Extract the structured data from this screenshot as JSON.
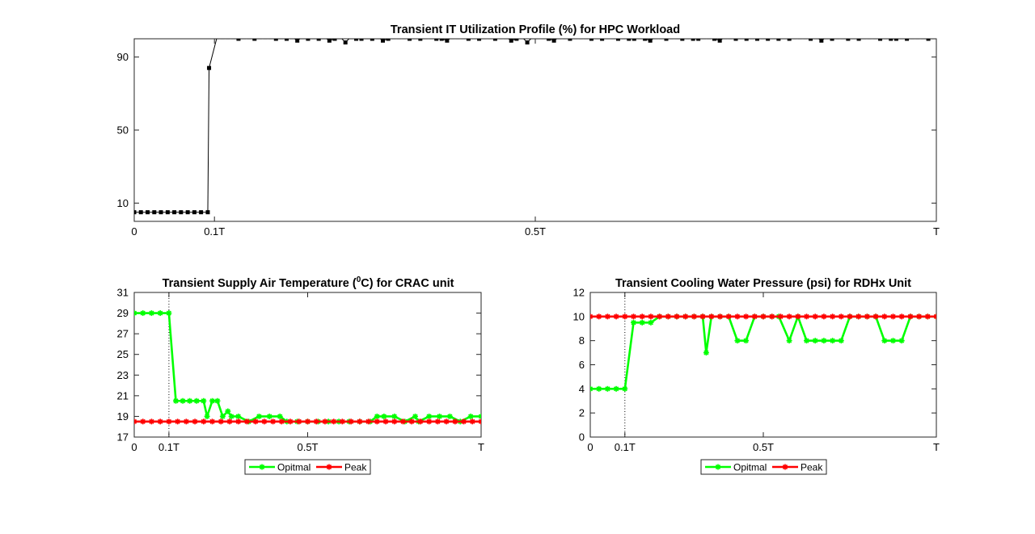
{
  "colors": {
    "optimal": "#00ff00",
    "peak": "#ff0000",
    "it": "#000000",
    "axis": "#262626"
  },
  "chart_data": [
    {
      "type": "line",
      "title": "Transient IT Utilization Profile (%) for HPC Workload",
      "xlabel": "",
      "ylabel": "",
      "xlim": [
        0,
        1
      ],
      "ylim": [
        0,
        100
      ],
      "xticks": [
        {
          "v": 0,
          "label": "0"
        },
        {
          "v": 0.1,
          "label": "0.1T"
        },
        {
          "v": 0.5,
          "label": "0.5T"
        },
        {
          "v": 1,
          "label": "T"
        }
      ],
      "yticks": [
        {
          "v": 10,
          "label": "10"
        },
        {
          "v": 50,
          "label": "50"
        },
        {
          "v": 90,
          "label": "90"
        }
      ],
      "grid": false,
      "marker": "square",
      "series": [
        {
          "color": "#000000",
          "x": [
            0,
            0.0083,
            0.0167,
            0.025,
            0.0333,
            0.0417,
            0.05,
            0.0583,
            0.0667,
            0.075,
            0.0833,
            0.0917,
            0.0933,
            0.1033,
            0.11,
            0.1167,
            0.1233,
            0.13,
            0.1367,
            0.1433,
            0.15,
            0.1567,
            0.1633,
            0.17,
            0.1767,
            0.1833,
            0.19,
            0.1967,
            0.2033,
            0.21,
            0.2167,
            0.2233,
            0.23,
            0.2367,
            0.2433,
            0.25,
            0.2567,
            0.2633,
            0.27,
            0.2767,
            0.2833,
            0.29,
            0.2967,
            0.3033,
            0.31,
            0.3167,
            0.3233,
            0.33,
            0.3367,
            0.3433,
            0.35,
            0.3567,
            0.3633,
            0.37,
            0.3767,
            0.3833,
            0.39,
            0.3967,
            0.4033,
            0.41,
            0.4167,
            0.4233,
            0.43,
            0.4367,
            0.4433,
            0.45,
            0.4567,
            0.4633,
            0.47,
            0.4767,
            0.4833,
            0.49,
            0.4967,
            0.5033,
            0.51,
            0.5167,
            0.5233,
            0.53,
            0.5367,
            0.5433,
            0.55,
            0.5567,
            0.5633,
            0.57,
            0.5767,
            0.5833,
            0.59,
            0.5967,
            0.6033,
            0.61,
            0.6167,
            0.6233,
            0.63,
            0.6367,
            0.6433,
            0.65,
            0.6567,
            0.6633,
            0.67,
            0.6767,
            0.6833,
            0.69,
            0.6967,
            0.7033,
            0.71,
            0.7167,
            0.7233,
            0.73,
            0.7367,
            0.7433,
            0.75,
            0.7567,
            0.7633,
            0.77,
            0.7767,
            0.7833,
            0.79,
            0.7967,
            0.8033,
            0.81,
            0.8167,
            0.8233,
            0.83,
            0.8367,
            0.8433,
            0.85,
            0.8567,
            0.8633,
            0.87,
            0.8767,
            0.8833,
            0.89,
            0.8967,
            0.9033,
            0.91,
            0.9167,
            0.9233,
            0.93,
            0.9367,
            0.9433,
            0.95,
            0.9567,
            0.9633,
            0.97,
            0.9767,
            0.9833,
            0.99,
            0.9967
          ],
          "values": [
            5,
            5,
            5,
            5,
            5,
            5,
            5,
            5,
            5,
            5,
            5,
            5,
            84,
            101,
            101,
            101,
            101,
            100,
            101,
            101,
            100,
            101,
            101,
            101,
            100,
            101,
            100,
            101,
            99,
            101,
            100,
            101,
            100,
            101,
            99,
            100,
            101,
            98,
            101,
            100,
            100,
            101,
            100,
            101,
            99,
            100,
            101,
            101,
            101,
            100,
            101,
            100,
            101,
            101,
            100,
            100,
            99,
            101,
            101,
            101,
            100,
            101,
            100,
            101,
            101,
            100,
            101,
            101,
            99,
            100,
            101,
            98,
            101,
            101,
            101,
            100,
            99,
            101,
            101,
            100,
            101,
            101,
            101,
            100,
            101,
            100,
            101,
            101,
            100,
            101,
            100,
            100,
            101,
            100,
            99,
            101,
            101,
            100,
            101,
            101,
            100,
            101,
            100,
            100,
            101,
            101,
            100,
            99,
            101,
            101,
            100,
            101,
            100,
            101,
            100,
            101,
            100,
            101,
            100,
            101,
            100,
            101,
            101,
            101,
            100,
            101,
            99,
            101,
            100,
            101,
            101,
            100,
            101,
            100,
            101,
            101,
            101,
            100,
            101,
            100,
            100,
            101,
            100,
            101,
            101,
            101,
            100,
            101
          ]
        }
      ]
    },
    {
      "type": "line",
      "title": "Transient Supply Air Temperature (",
      "title_sup": "0",
      "title_end": "C) for CRAC unit",
      "xlabel": "",
      "ylabel": "",
      "xlim": [
        0,
        1
      ],
      "ylim": [
        17,
        31
      ],
      "xticks": [
        {
          "v": 0,
          "label": "0"
        },
        {
          "v": 0.1,
          "label": "0.1T"
        },
        {
          "v": 0.5,
          "label": "0.5T"
        },
        {
          "v": 1,
          "label": "T"
        }
      ],
      "yticks": [
        {
          "v": 17,
          "label": "17"
        },
        {
          "v": 19,
          "label": "19"
        },
        {
          "v": 21,
          "label": "21"
        },
        {
          "v": 23,
          "label": "23"
        },
        {
          "v": 25,
          "label": "25"
        },
        {
          "v": 27,
          "label": "27"
        },
        {
          "v": 29,
          "label": "29"
        },
        {
          "v": 31,
          "label": "31"
        }
      ],
      "vline": 0.1,
      "grid": false,
      "marker": "asterisk",
      "legend_position": "bottom",
      "series": [
        {
          "name": "Opitmal",
          "color": "#00ff00",
          "x": [
            0,
            0.025,
            0.05,
            0.075,
            0.1,
            0.12,
            0.14,
            0.16,
            0.18,
            0.2,
            0.21,
            0.225,
            0.24,
            0.255,
            0.27,
            0.28,
            0.3,
            0.33,
            0.36,
            0.39,
            0.42,
            0.44,
            0.47,
            0.5,
            0.53,
            0.56,
            0.59,
            0.62,
            0.65,
            0.68,
            0.7,
            0.72,
            0.75,
            0.78,
            0.81,
            0.82,
            0.85,
            0.88,
            0.91,
            0.94,
            0.97,
            1.0
          ],
          "values": [
            29,
            29,
            29,
            29,
            29,
            20.5,
            20.5,
            20.5,
            20.5,
            20.5,
            19,
            20.5,
            20.5,
            19,
            19.5,
            19,
            19,
            18.5,
            19,
            19,
            19,
            18.5,
            18.5,
            18.5,
            18.5,
            18.5,
            18.5,
            18.5,
            18.5,
            18.5,
            19,
            19,
            19,
            18.5,
            19,
            18.5,
            19,
            19,
            19,
            18.5,
            19,
            19
          ]
        },
        {
          "name": "Peak",
          "color": "#ff0000",
          "x": [
            0,
            0.025,
            0.05,
            0.075,
            0.1,
            0.125,
            0.15,
            0.175,
            0.2,
            0.225,
            0.25,
            0.275,
            0.3,
            0.325,
            0.35,
            0.375,
            0.4,
            0.425,
            0.45,
            0.475,
            0.5,
            0.525,
            0.55,
            0.575,
            0.6,
            0.625,
            0.65,
            0.675,
            0.7,
            0.725,
            0.75,
            0.775,
            0.8,
            0.825,
            0.85,
            0.875,
            0.9,
            0.925,
            0.95,
            0.975,
            1.0
          ],
          "values": [
            18.5,
            18.5,
            18.5,
            18.5,
            18.5,
            18.5,
            18.5,
            18.5,
            18.5,
            18.5,
            18.5,
            18.5,
            18.5,
            18.5,
            18.5,
            18.5,
            18.5,
            18.5,
            18.5,
            18.5,
            18.5,
            18.5,
            18.5,
            18.5,
            18.5,
            18.5,
            18.5,
            18.5,
            18.5,
            18.5,
            18.5,
            18.5,
            18.5,
            18.5,
            18.5,
            18.5,
            18.5,
            18.5,
            18.5,
            18.5,
            18.5
          ]
        }
      ]
    },
    {
      "type": "line",
      "title": "Transient Cooling Water Pressure (psi) for RDHx Unit",
      "xlabel": "",
      "ylabel": "",
      "xlim": [
        0,
        1
      ],
      "ylim": [
        0,
        12
      ],
      "xticks": [
        {
          "v": 0,
          "label": "0"
        },
        {
          "v": 0.1,
          "label": "0.1T"
        },
        {
          "v": 0.5,
          "label": "0.5T"
        },
        {
          "v": 1,
          "label": "T"
        }
      ],
      "yticks": [
        {
          "v": 0,
          "label": "0"
        },
        {
          "v": 2,
          "label": "2"
        },
        {
          "v": 4,
          "label": "4"
        },
        {
          "v": 6,
          "label": "6"
        },
        {
          "v": 8,
          "label": "8"
        },
        {
          "v": 10,
          "label": "10"
        },
        {
          "v": 12,
          "label": "12"
        }
      ],
      "vline": 0.1,
      "grid": false,
      "marker": "asterisk",
      "legend_position": "bottom",
      "series": [
        {
          "name": "Opitmal",
          "color": "#00ff00",
          "x": [
            0,
            0.025,
            0.05,
            0.075,
            0.1,
            0.125,
            0.15,
            0.175,
            0.2,
            0.225,
            0.25,
            0.275,
            0.3,
            0.325,
            0.335,
            0.35,
            0.375,
            0.4,
            0.425,
            0.45,
            0.475,
            0.5,
            0.525,
            0.545,
            0.575,
            0.6,
            0.625,
            0.65,
            0.675,
            0.7,
            0.725,
            0.75,
            0.775,
            0.8,
            0.825,
            0.85,
            0.875,
            0.9,
            0.925,
            0.95,
            0.975,
            1.0
          ],
          "values": [
            4,
            4,
            4,
            4,
            4,
            9.5,
            9.5,
            9.5,
            10,
            10,
            10,
            10,
            10,
            10,
            7,
            10,
            10,
            10,
            8,
            8,
            10,
            10,
            10,
            10,
            8,
            10,
            8,
            8,
            8,
            8,
            8,
            10,
            10,
            10,
            10,
            8,
            8,
            8,
            10,
            10,
            10,
            10
          ]
        },
        {
          "name": "Peak",
          "color": "#ff0000",
          "x": [
            0,
            0.025,
            0.05,
            0.075,
            0.1,
            0.125,
            0.15,
            0.175,
            0.2,
            0.225,
            0.25,
            0.275,
            0.3,
            0.325,
            0.35,
            0.375,
            0.4,
            0.425,
            0.45,
            0.475,
            0.5,
            0.525,
            0.55,
            0.575,
            0.6,
            0.625,
            0.65,
            0.675,
            0.7,
            0.725,
            0.75,
            0.775,
            0.8,
            0.825,
            0.85,
            0.875,
            0.9,
            0.925,
            0.95,
            0.975,
            1.0
          ],
          "values": [
            10,
            10,
            10,
            10,
            10,
            10,
            10,
            10,
            10,
            10,
            10,
            10,
            10,
            10,
            10,
            10,
            10,
            10,
            10,
            10,
            10,
            10,
            10,
            10,
            10,
            10,
            10,
            10,
            10,
            10,
            10,
            10,
            10,
            10,
            10,
            10,
            10,
            10,
            10,
            10,
            10
          ]
        }
      ]
    }
  ]
}
